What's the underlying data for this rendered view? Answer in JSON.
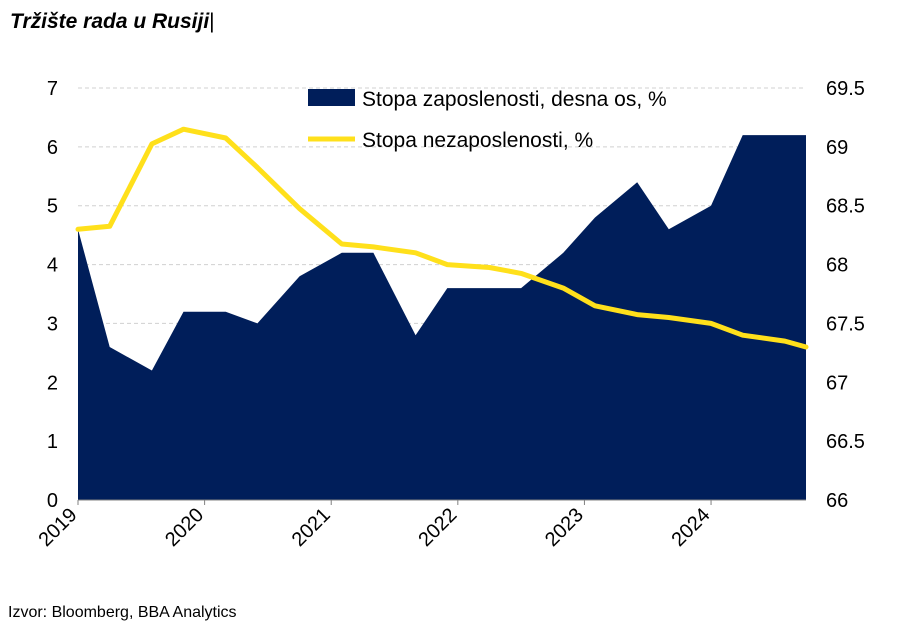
{
  "title": "Tržište rada u Rusiji",
  "title_cursor": "|",
  "source": "Izvor: Bloomberg, BBA Analytics",
  "colors": {
    "area": "#001E5A",
    "line": "#FFE01B",
    "grid": "#D0D0D0"
  },
  "chart_data": {
    "type": "area",
    "title": "Tržište rada u Rusiji",
    "x_range": [
      "2019-01",
      "2024-10"
    ],
    "x_tick_labels": [
      "2019",
      "2020",
      "2021",
      "2022",
      "2023",
      "2024"
    ],
    "y_left": {
      "lim": [
        0,
        7
      ],
      "ticks": [
        "0",
        "1",
        "2",
        "3",
        "4",
        "5",
        "6",
        "7"
      ]
    },
    "y_right": {
      "lim": [
        66,
        69.5
      ],
      "ticks": [
        "66",
        "66.5",
        "67",
        "67.5",
        "68",
        "68.5",
        "69",
        "69.5"
      ]
    },
    "grid": true,
    "legend_position": "top-right",
    "series": [
      {
        "name": "Stopa zaposlenosti, desna os, %",
        "type": "area",
        "axis": "right",
        "x": [
          "2019-01",
          "2019-04",
          "2019-08",
          "2019-11",
          "2020-03",
          "2020-06",
          "2020-10",
          "2021-02",
          "2021-05",
          "2021-09",
          "2021-12",
          "2022-04",
          "2022-07",
          "2022-11",
          "2023-02",
          "2023-06",
          "2023-09",
          "2024-01",
          "2024-04",
          "2024-08",
          "2024-10"
        ],
        "values": [
          68.3,
          67.3,
          67.1,
          67.6,
          67.6,
          67.5,
          67.9,
          68.1,
          68.1,
          67.4,
          67.8,
          67.8,
          67.8,
          68.1,
          68.4,
          68.7,
          68.3,
          68.5,
          69.1,
          69.1,
          69.1
        ]
      },
      {
        "name": "Stopa nezaposlenosti, %",
        "type": "line",
        "axis": "left",
        "x": [
          "2019-01",
          "2019-04",
          "2019-08",
          "2019-11",
          "2020-03",
          "2020-06",
          "2020-10",
          "2021-02",
          "2021-05",
          "2021-09",
          "2021-12",
          "2022-04",
          "2022-07",
          "2022-11",
          "2023-02",
          "2023-06",
          "2023-09",
          "2024-01",
          "2024-04",
          "2024-08",
          "2024-10"
        ],
        "values": [
          4.6,
          4.65,
          6.05,
          6.3,
          6.15,
          5.65,
          4.95,
          4.35,
          4.3,
          4.2,
          4.0,
          3.95,
          3.85,
          3.6,
          3.3,
          3.15,
          3.1,
          3.0,
          2.8,
          2.7,
          2.6
        ]
      }
    ]
  }
}
